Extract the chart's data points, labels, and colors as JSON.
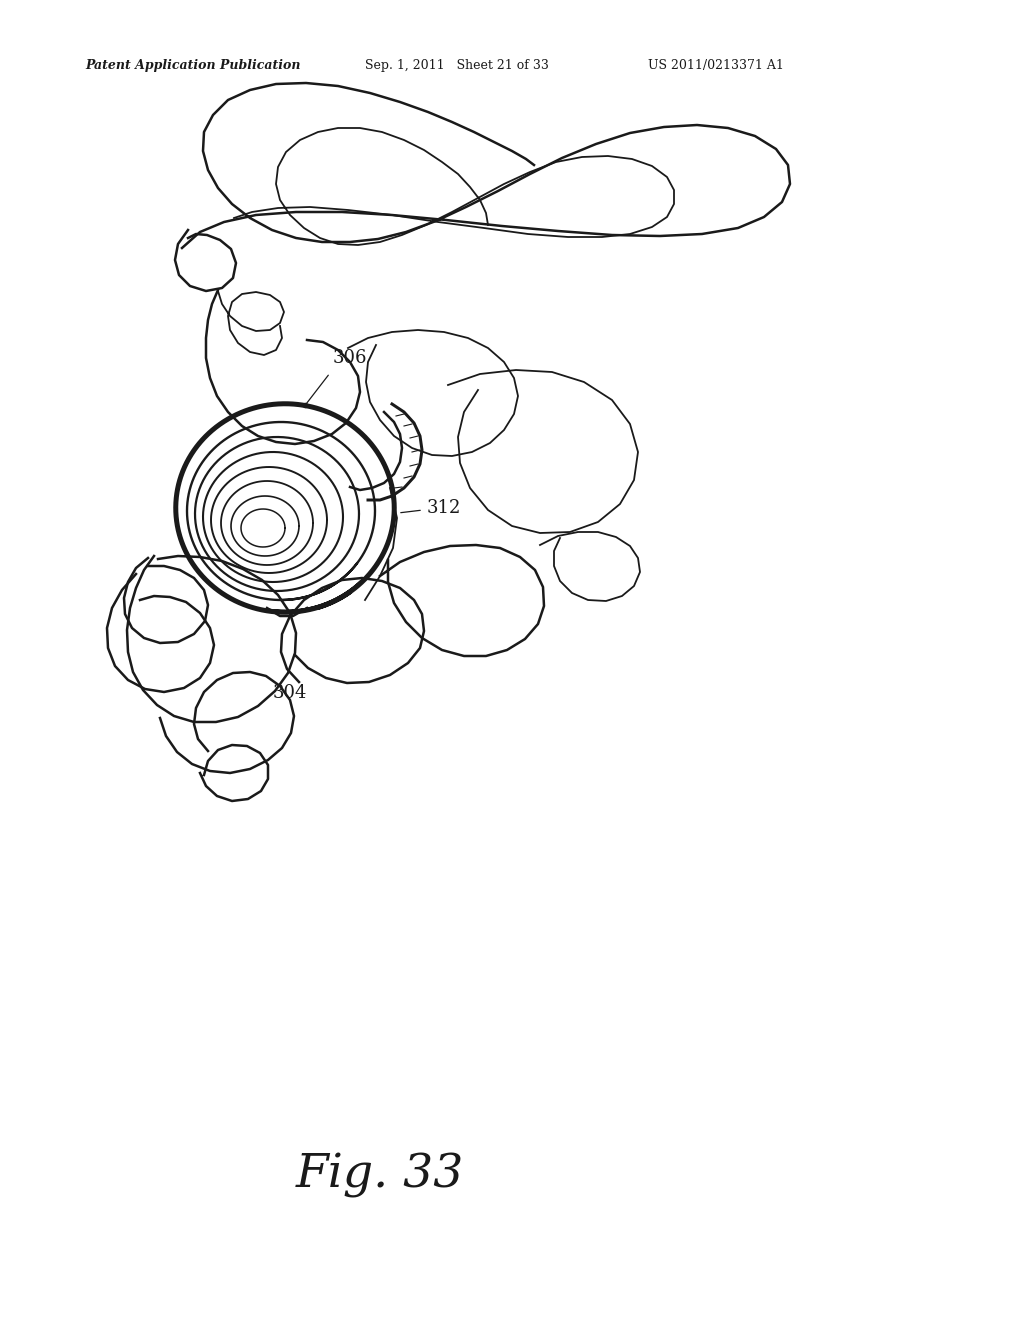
{
  "title": "Fig. 33",
  "patent_header_left": "Patent Application Publication",
  "patent_header_mid": "Sep. 1, 2011   Sheet 21 of 33",
  "patent_header_right": "US 2011/0213371 A1",
  "label_306": "306",
  "label_312": "312",
  "label_304": "304",
  "bg_color": "#ffffff",
  "line_color": "#1a1a1a",
  "header_fontsize": 9,
  "fig_label_fontsize": 34,
  "annotation_fontsize": 13
}
